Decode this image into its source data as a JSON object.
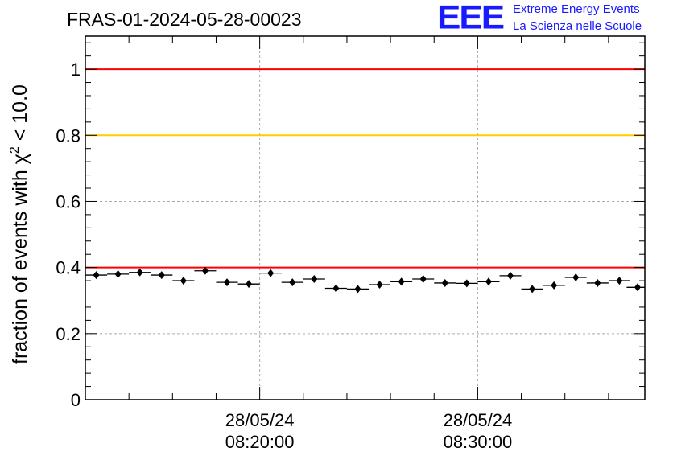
{
  "header": {
    "run_title": "FRAS-01-2024-05-28-00023",
    "logo_text": "EEE",
    "logo_line1": "Extreme Energy Events",
    "logo_line2": "La Scienza nelle Scuole"
  },
  "chart_data": {
    "type": "scatter",
    "title": "FRAS-01-2024-05-28-00023",
    "xlabel": "",
    "ylabel_prefix": "fraction of events with χ",
    "ylabel_sup": "2",
    "ylabel_suffix": " < 10.0",
    "ylim": [
      0,
      1.1
    ],
    "yticks": [
      0,
      0.2,
      0.4,
      0.6,
      0.8,
      1
    ],
    "ytick_labels": [
      "0",
      "0.2",
      "0.4",
      "0.6",
      "0.8",
      "1"
    ],
    "xlim": [
      "2024-05-28 08:12:00",
      "2024-05-28 08:37:40"
    ],
    "xticks": [
      {
        "time": "2024-05-28 08:20:00",
        "line1": "28/05/24",
        "line2": "08:20:00"
      },
      {
        "time": "2024-05-28 08:30:00",
        "line1": "28/05/24",
        "line2": "08:30:00"
      }
    ],
    "grid": true,
    "threshold_lines": [
      {
        "y": 1.0,
        "color": "#ff0000"
      },
      {
        "y": 0.8,
        "color": "#ffcc00"
      },
      {
        "y": 0.4,
        "color": "#ff0000"
      }
    ],
    "bin_width_minutes": 1,
    "x": [
      "08:12:30",
      "08:13:30",
      "08:14:30",
      "08:15:30",
      "08:16:30",
      "08:17:30",
      "08:18:30",
      "08:19:30",
      "08:20:30",
      "08:21:30",
      "08:22:30",
      "08:23:30",
      "08:24:30",
      "08:25:30",
      "08:26:30",
      "08:27:30",
      "08:28:30",
      "08:29:30",
      "08:30:30",
      "08:31:30",
      "08:32:30",
      "08:33:30",
      "08:34:30",
      "08:35:30",
      "08:36:30",
      "08:37:20"
    ],
    "values": [
      0.377,
      0.38,
      0.385,
      0.377,
      0.36,
      0.39,
      0.355,
      0.35,
      0.383,
      0.355,
      0.365,
      0.337,
      0.335,
      0.348,
      0.357,
      0.365,
      0.353,
      0.352,
      0.357,
      0.375,
      0.335,
      0.346,
      0.37,
      0.353,
      0.36,
      0.34
    ],
    "colors": {
      "marker": "#000000",
      "grid": "#aaaaaa",
      "axis": "#000000"
    }
  }
}
